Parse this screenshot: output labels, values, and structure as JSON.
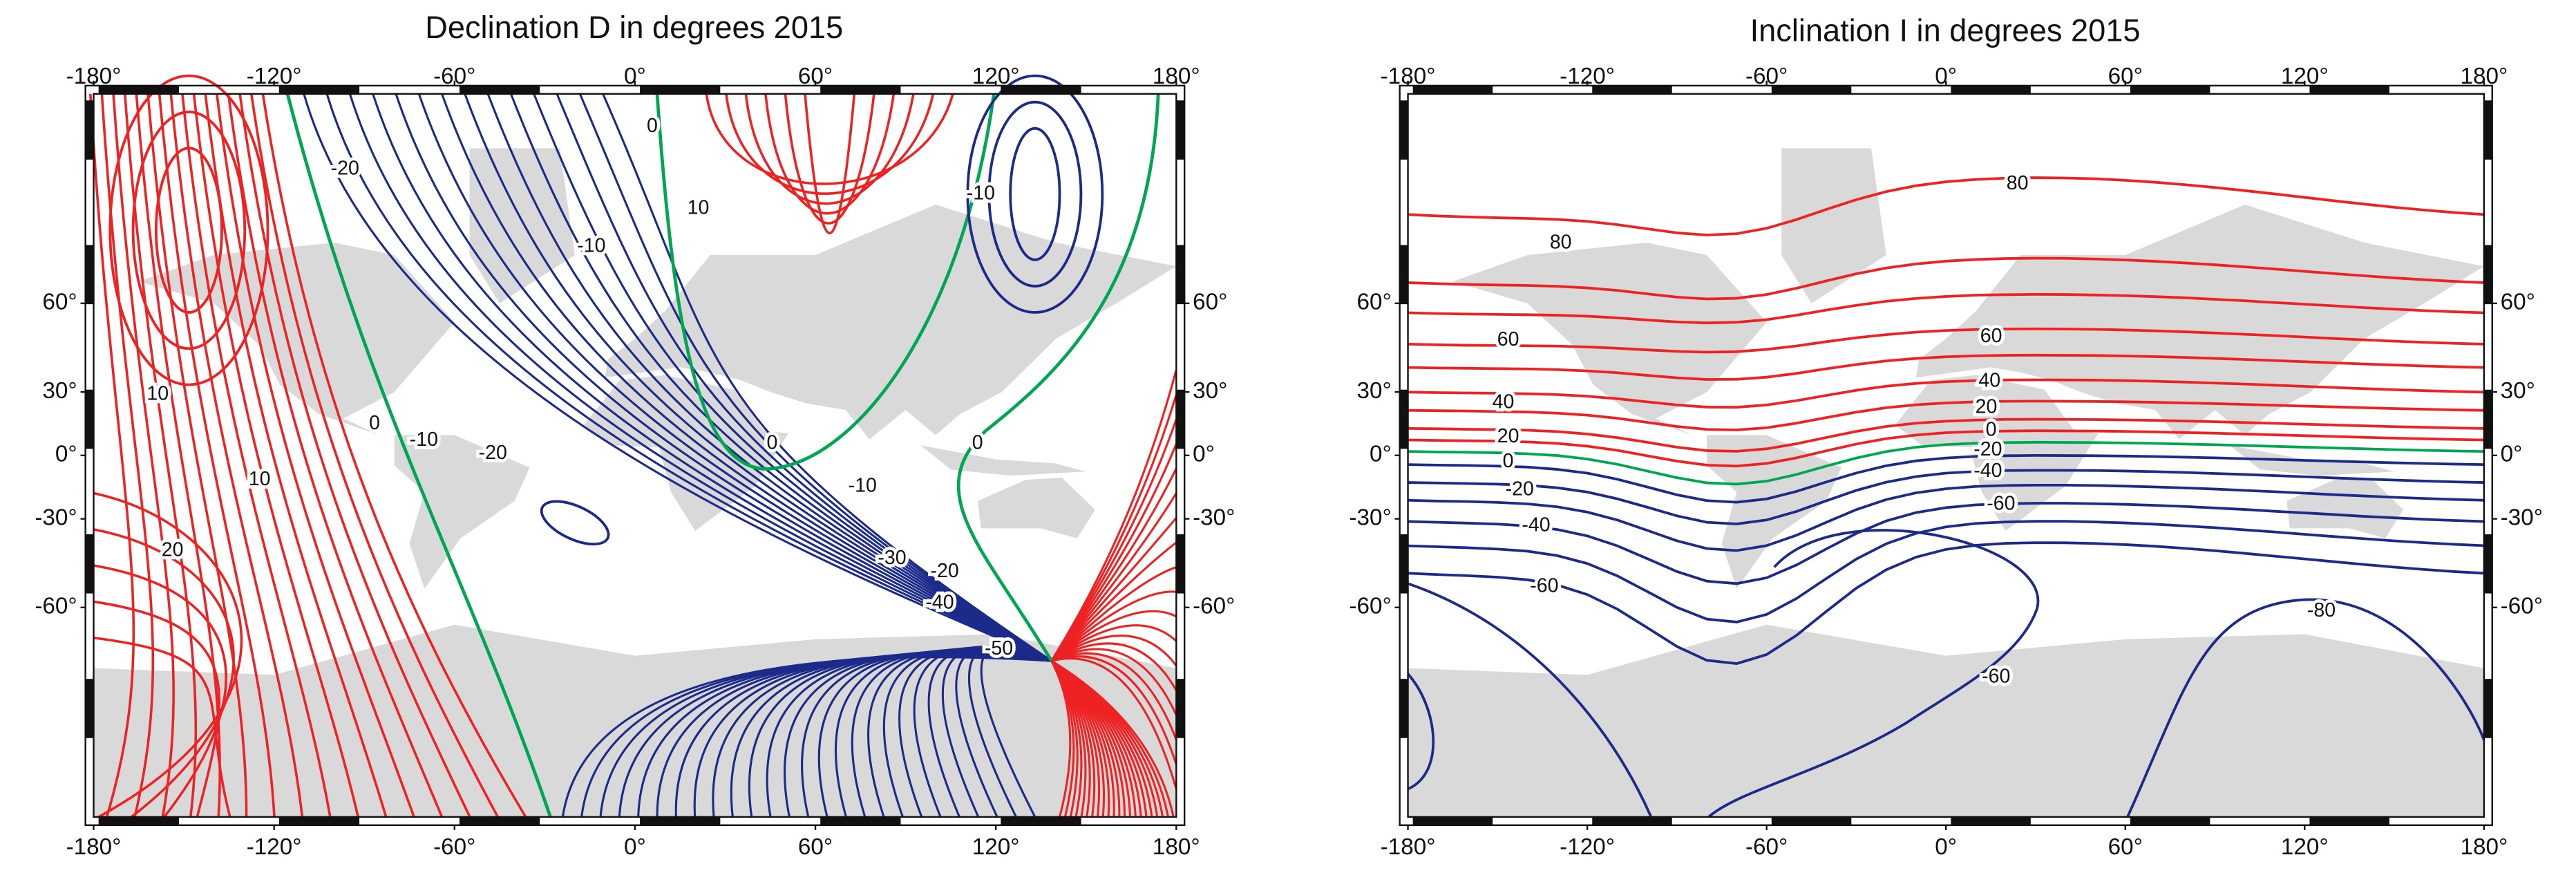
{
  "maps": [
    {
      "title": "Declination D in degrees 2015",
      "xlim": [
        -180,
        180
      ],
      "ylim": [
        -85,
        85
      ],
      "xticks": [
        {
          "value": -180,
          "label": "-180°"
        },
        {
          "value": -120,
          "label": "-120°"
        },
        {
          "value": -60,
          "label": "-60°"
        },
        {
          "value": 0,
          "label": "0°"
        },
        {
          "value": 60,
          "label": "60°"
        },
        {
          "value": 120,
          "label": "120°"
        },
        {
          "value": 180,
          "label": "180°"
        }
      ],
      "yticks": [
        {
          "value": 60,
          "label": "60°"
        },
        {
          "value": 30,
          "label": "30°"
        },
        {
          "value": 0,
          "label": "0°"
        },
        {
          "value": -30,
          "label": "-30°"
        },
        {
          "value": -60,
          "label": "-60°"
        }
      ],
      "contour_labels": [
        -20,
        0,
        10,
        -10,
        -10,
        10,
        0,
        -10,
        -20,
        0,
        0,
        10,
        -10,
        20,
        -30,
        -20,
        -40,
        -50
      ]
    },
    {
      "title": "Inclination I in degrees 2015",
      "xlim": [
        -180,
        180
      ],
      "ylim": [
        -85,
        85
      ],
      "xticks": [
        {
          "value": -180,
          "label": "-180°"
        },
        {
          "value": -120,
          "label": "-120°"
        },
        {
          "value": -60,
          "label": "-60°"
        },
        {
          "value": 0,
          "label": "0°"
        },
        {
          "value": 60,
          "label": "60°"
        },
        {
          "value": 120,
          "label": "120°"
        },
        {
          "value": 180,
          "label": "180°"
        }
      ],
      "yticks": [
        {
          "value": 60,
          "label": "60°"
        },
        {
          "value": 30,
          "label": "30°"
        },
        {
          "value": 0,
          "label": "0°"
        },
        {
          "value": -30,
          "label": "-30°"
        },
        {
          "value": -60,
          "label": "-60°"
        }
      ],
      "contour_labels": [
        80,
        80,
        60,
        60,
        40,
        40,
        20,
        20,
        0,
        0,
        -20,
        -20,
        -40,
        -40,
        -60,
        -60,
        -60,
        -80
      ]
    }
  ]
}
